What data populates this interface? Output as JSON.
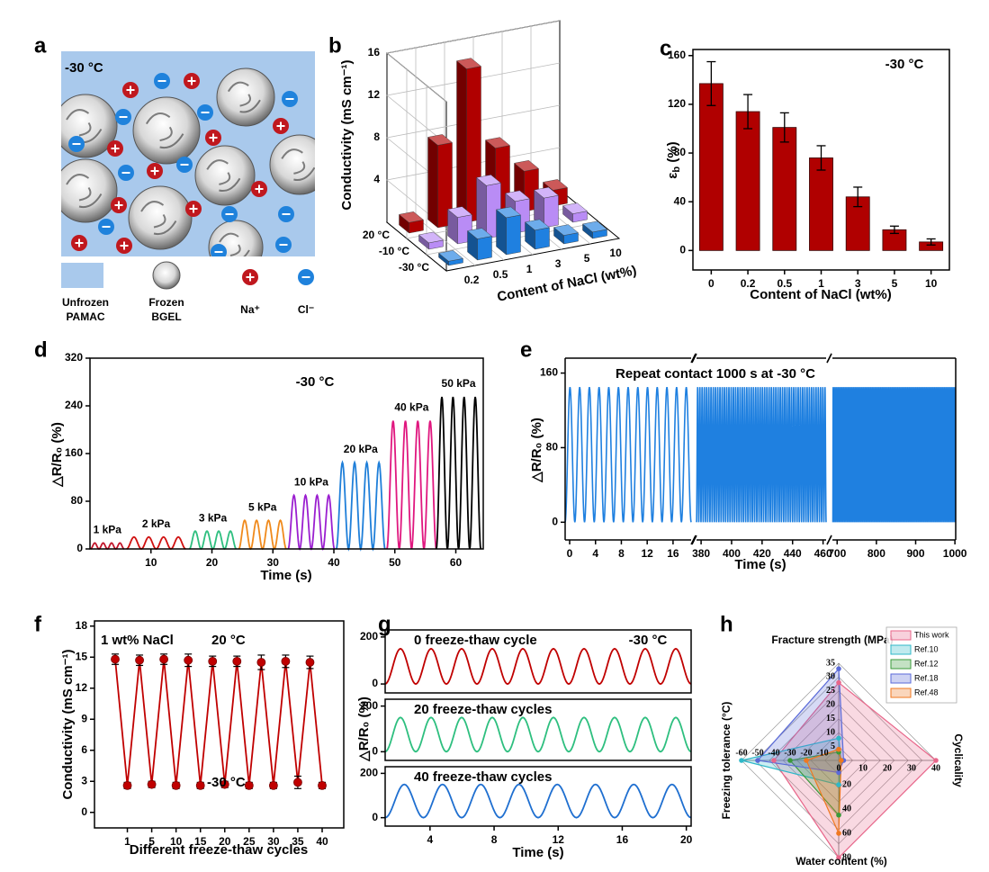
{
  "schematic": {
    "panel": "a",
    "temperature": "-30 °C",
    "legend": {
      "unfrozen": [
        "Unfrozen",
        "PAMAC"
      ],
      "frozen": [
        "Frozen",
        "BGEL"
      ],
      "cation": "Na⁺",
      "anion": "Cl⁻"
    }
  },
  "chart_data": [
    {
      "panel": "b",
      "type": "bar3d",
      "categories": [
        "0.2",
        "0.5",
        "1",
        "3",
        "5",
        "10"
      ],
      "x_label": "Content of NaCl (wt%)",
      "z_label": "Conductivity (mS cm⁻¹)",
      "zlim": [
        0,
        16
      ],
      "zticks": [
        4,
        8,
        12,
        16
      ],
      "grid": true,
      "series": [
        {
          "name": "20 °C",
          "color": "#b00000",
          "values": [
            1.0,
            7.8,
            14.5,
            6.5,
            3.8,
            1.5
          ]
        },
        {
          "name": "-10 °C",
          "color": "#b98cf5",
          "values": [
            0.6,
            2.5,
            5.0,
            3.0,
            2.8,
            0.8
          ]
        },
        {
          "name": "-30 °C",
          "color": "#1f80e0",
          "values": [
            0.4,
            2.0,
            3.5,
            1.8,
            0.8,
            0.6
          ]
        }
      ]
    },
    {
      "panel": "c",
      "type": "bar",
      "annotation": "-30 °C",
      "categories": [
        "0",
        "0.2",
        "0.5",
        "1",
        "3",
        "5",
        "10"
      ],
      "values": [
        137,
        114,
        101,
        76,
        44,
        17,
        7
      ],
      "errors": [
        18,
        14,
        12,
        10,
        8,
        3,
        2.5
      ],
      "color": "#b00000",
      "ylim": [
        -16,
        165
      ],
      "yticks": [
        0,
        40,
        80,
        120,
        160
      ],
      "y_label": [
        "ε",
        "b",
        " (%)"
      ],
      "x_label": "Content of NaCl (wt%)"
    },
    {
      "panel": "d",
      "type": "cyclic",
      "annotation": "-30 °C",
      "x_label": "Time (s)",
      "y_label": "△R/R₀ (%)",
      "xlim": [
        0,
        64.5
      ],
      "xticks": [
        10,
        20,
        30,
        40,
        50,
        60
      ],
      "ylim": [
        0,
        320
      ],
      "yticks": [
        0,
        80,
        160,
        240,
        320
      ],
      "series": [
        {
          "name": "1 kPa",
          "color": "#c0152a",
          "x": [
            0.1,
            5.6
          ],
          "peak": 10,
          "cycles": 4
        },
        {
          "name": "2 kPa",
          "color": "#d01010",
          "x": [
            6.0,
            15.7
          ],
          "peak": 20,
          "cycles": 4
        },
        {
          "name": "3 kPa",
          "color": "#2ebf7f",
          "x": [
            16.3,
            24.0
          ],
          "peak": 30,
          "cycles": 4
        },
        {
          "name": "5 kPa",
          "color": "#f08a1c",
          "x": [
            24.4,
            32.2
          ],
          "peak": 48,
          "cycles": 4
        },
        {
          "name": "10 kPa",
          "color": "#9b1fd0",
          "x": [
            32.5,
            40.1
          ],
          "peak": 90,
          "cycles": 4
        },
        {
          "name": "20 kPa",
          "color": "#1f7fd9",
          "x": [
            40.4,
            48.4
          ],
          "peak": 145,
          "cycles": 4
        },
        {
          "name": "40 kPa",
          "color": "#e0177f",
          "x": [
            48.7,
            56.8
          ],
          "peak": 215,
          "cycles": 4
        },
        {
          "name": "50 kPa",
          "color": "#000000",
          "x": [
            56.8,
            64.1
          ],
          "peak": 255,
          "cycles": 4
        }
      ]
    },
    {
      "panel": "e",
      "type": "broken-cyclic",
      "annotation": "Repeat contact 1000 s at -30 °C",
      "x_label": "Time (s)",
      "y_label": "△R/R₀ (%)",
      "ylim": [
        -19,
        176
      ],
      "yticks": [
        0,
        80,
        160
      ],
      "color": "#1f80e0",
      "peak": 145,
      "trough": 0,
      "segments": [
        {
          "xlim": [
            -0.7,
            18.8
          ],
          "xticks": [
            0,
            4,
            8,
            12,
            16
          ],
          "cycles": 13
        },
        {
          "xlim": [
            377,
            462
          ],
          "xticks": [
            380,
            400,
            420,
            440,
            460
          ],
          "cycles": 58
        },
        {
          "xlim": [
            688,
            1002
          ],
          "xticks": [
            700,
            800,
            900,
            1000
          ],
          "cycles": 210
        }
      ]
    },
    {
      "panel": "f",
      "type": "line-errorbar",
      "categories": [
        null,
        "1",
        null,
        "5",
        null,
        "10",
        null,
        "15",
        null,
        "20",
        null,
        "25",
        null,
        "30",
        null,
        "35",
        null,
        "40"
      ],
      "values": [
        14.8,
        2.6,
        14.7,
        2.7,
        14.8,
        2.6,
        14.7,
        2.6,
        14.6,
        2.7,
        14.6,
        2.6,
        14.5,
        2.6,
        14.6,
        2.9,
        14.5,
        2.6
      ],
      "errors": [
        0.5,
        0.3,
        0.5,
        0.3,
        0.5,
        0.3,
        0.6,
        0.3,
        0.5,
        0.3,
        0.5,
        0.3,
        0.7,
        0.3,
        0.6,
        0.6,
        0.6,
        0.3
      ],
      "color": "#c00000",
      "ylim": [
        -1.5,
        18.5
      ],
      "yticks": [
        0,
        3,
        6,
        9,
        12,
        15,
        18
      ],
      "annotations": [
        "1 wt%  NaCl",
        "20 °C",
        "-30 °C"
      ],
      "y_label": "Conductivity (mS cm⁻¹)",
      "x_label": "Different freeze-thaw cycles"
    },
    {
      "panel": "g",
      "type": "stacked-cyclic",
      "annotation": "-30 °C",
      "x_label": "Time (s)",
      "y_label": "△R/R₀ (%)",
      "xlim": [
        1.2,
        20.3
      ],
      "xticks": [
        4,
        8,
        12,
        16,
        20
      ],
      "ylim": [
        -38,
        230
      ],
      "yticks": [
        0,
        200
      ],
      "series": [
        {
          "name": "0 freeze-thaw cycle",
          "color": "#c00000",
          "peak": 150,
          "cycles": 10
        },
        {
          "name": "20 freeze-thaw cycles",
          "color": "#2ebf7f",
          "peak": 150,
          "cycles": 10
        },
        {
          "name": "40 freeze-thaw cycles",
          "color": "#1f6fd0",
          "peak": 150,
          "cycles": 8
        }
      ]
    },
    {
      "panel": "h",
      "type": "radar",
      "axes": [
        {
          "name": "Fracture strength (MPa)",
          "lim": [
            0,
            35
          ],
          "ticks": [
            5,
            10,
            15,
            20,
            25,
            30,
            35
          ]
        },
        {
          "name": "Cyclicality",
          "lim": [
            0,
            40
          ],
          "ticks": [
            0,
            10,
            20,
            30,
            40
          ]
        },
        {
          "name": "Water content (%)",
          "lim": [
            0,
            80
          ],
          "ticks": [
            20,
            40,
            60,
            80
          ]
        },
        {
          "name": "Freezing tolerance (°C)",
          "lim": [
            0,
            -60
          ],
          "ticks": [
            -60,
            -50,
            -40,
            -30,
            -20,
            -10
          ]
        }
      ],
      "series": [
        {
          "name": "This work",
          "color": "#e8668a",
          "values": [
            28,
            40,
            80,
            -40
          ]
        },
        {
          "name": "Ref.10",
          "color": "#2fb8c8",
          "values": [
            8,
            1,
            20,
            -60
          ]
        },
        {
          "name": "Ref.12",
          "color": "#3a9a3a",
          "values": [
            3,
            1,
            45,
            -30
          ]
        },
        {
          "name": "Ref.18",
          "color": "#5a6ad8",
          "values": [
            33,
            2,
            10,
            -50
          ]
        },
        {
          "name": "Ref.48",
          "color": "#f07820",
          "values": [
            4,
            1,
            60,
            -20
          ]
        }
      ]
    }
  ]
}
